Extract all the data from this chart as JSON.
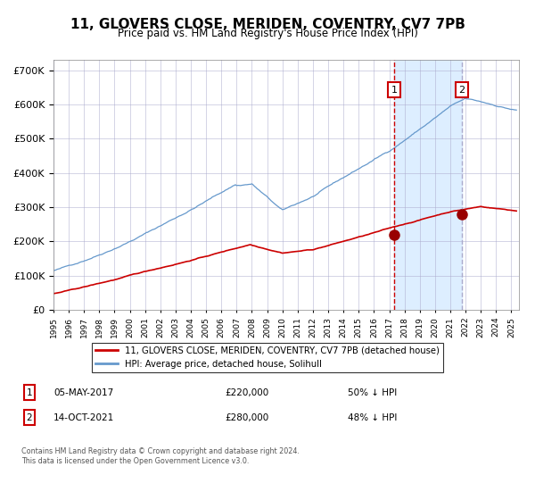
{
  "title": "11, GLOVERS CLOSE, MERIDEN, COVENTRY, CV7 7PB",
  "subtitle": "Price paid vs. HM Land Registry's House Price Index (HPI)",
  "legend_red": "11, GLOVERS CLOSE, MERIDEN, COVENTRY, CV7 7PB (detached house)",
  "legend_blue": "HPI: Average price, detached house, Solihull",
  "transaction1_date": "05-MAY-2017",
  "transaction1_price": 220000,
  "transaction1_pct": "50% ↓ HPI",
  "transaction2_date": "14-OCT-2021",
  "transaction2_price": 280000,
  "transaction2_pct": "48% ↓ HPI",
  "footer": "Contains HM Land Registry data © Crown copyright and database right 2024.\nThis data is licensed under the Open Government Licence v3.0.",
  "red_color": "#cc0000",
  "blue_color": "#6699cc",
  "shade_color": "#ddeeff",
  "grid_color": "#aaaacc",
  "marker_color": "#990000",
  "dashed_line1_color": "#cc0000",
  "dashed_line2_color": "#aaaacc",
  "ylim": [
    0,
    730000
  ],
  "yticks": [
    0,
    100000,
    200000,
    300000,
    400000,
    500000,
    600000,
    700000
  ],
  "start_year": 1995,
  "end_year": 2025
}
